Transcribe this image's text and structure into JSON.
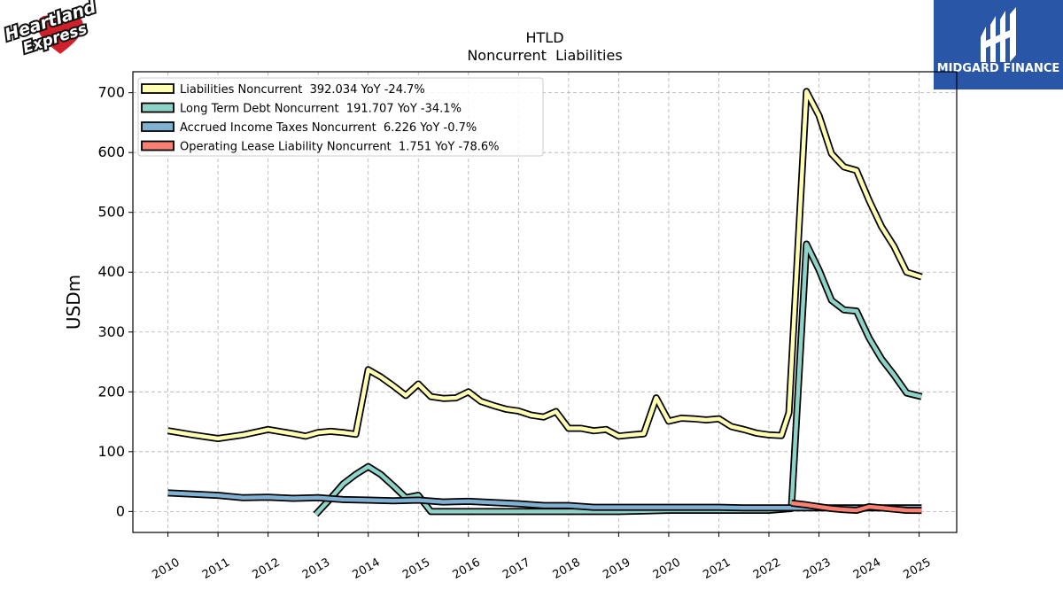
{
  "header": {
    "title": "HTLD",
    "subtitle": "Noncurrent  Liabilities"
  },
  "logo": {
    "company_lines": [
      "Heartland",
      "Express"
    ]
  },
  "brand": {
    "name": "MIDGARD FINANCE",
    "background": "#2a56a8"
  },
  "chart_data": {
    "type": "line",
    "title": "HTLD",
    "subtitle": "Noncurrent  Liabilities",
    "xlabel": "",
    "ylabel": "USDm",
    "xlim": [
      2009.3,
      2025.75
    ],
    "ylim": [
      -35,
      735
    ],
    "yticks": [
      0,
      100,
      200,
      300,
      400,
      500,
      600,
      700
    ],
    "xticks": [
      "2010",
      "2011",
      "2012",
      "2013",
      "2014",
      "2015",
      "2016",
      "2017",
      "2018",
      "2019",
      "2020",
      "2021",
      "2022",
      "2023",
      "2024",
      "2025"
    ],
    "grid": true,
    "legend_position": "top-left",
    "series": [
      {
        "name": "Liabilities Noncurrent",
        "legend": "Liabilities Noncurrent  392.034 YoY -24.7%",
        "color": "#ffffb3",
        "points": [
          [
            2010.0,
            135
          ],
          [
            2010.5,
            128
          ],
          [
            2011.0,
            122
          ],
          [
            2011.5,
            128
          ],
          [
            2012.0,
            137
          ],
          [
            2012.5,
            130
          ],
          [
            2012.75,
            126
          ],
          [
            2013.0,
            132
          ],
          [
            2013.25,
            134
          ],
          [
            2013.5,
            132
          ],
          [
            2013.75,
            129
          ],
          [
            2014.0,
            237
          ],
          [
            2014.25,
            225
          ],
          [
            2014.5,
            210
          ],
          [
            2014.75,
            194
          ],
          [
            2015.0,
            213
          ],
          [
            2015.25,
            192
          ],
          [
            2015.5,
            189
          ],
          [
            2015.75,
            190
          ],
          [
            2016.0,
            200
          ],
          [
            2016.25,
            184
          ],
          [
            2016.5,
            177
          ],
          [
            2016.75,
            171
          ],
          [
            2017.0,
            168
          ],
          [
            2017.25,
            161
          ],
          [
            2017.5,
            158
          ],
          [
            2017.75,
            167
          ],
          [
            2018.0,
            139
          ],
          [
            2018.25,
            139
          ],
          [
            2018.5,
            135
          ],
          [
            2018.75,
            137
          ],
          [
            2019.0,
            126
          ],
          [
            2019.25,
            128
          ],
          [
            2019.5,
            130
          ],
          [
            2019.75,
            190
          ],
          [
            2020.0,
            151
          ],
          [
            2020.25,
            156
          ],
          [
            2020.5,
            155
          ],
          [
            2020.75,
            153
          ],
          [
            2021.0,
            155
          ],
          [
            2021.25,
            142
          ],
          [
            2021.5,
            137
          ],
          [
            2021.75,
            131
          ],
          [
            2022.0,
            128
          ],
          [
            2022.25,
            127
          ],
          [
            2022.4,
            165
          ],
          [
            2022.75,
            702
          ],
          [
            2023.0,
            662
          ],
          [
            2023.25,
            598
          ],
          [
            2023.5,
            576
          ],
          [
            2023.75,
            570
          ],
          [
            2024.0,
            520
          ],
          [
            2024.25,
            476
          ],
          [
            2024.5,
            443
          ],
          [
            2024.75,
            400
          ],
          [
            2025.05,
            392
          ]
        ]
      },
      {
        "name": "Long Term Debt Noncurrent",
        "legend": "Long Term Debt Noncurrent  191.707 YoY -34.1%",
        "color": "#8dd3c7",
        "points": [
          [
            2012.95,
            -5
          ],
          [
            2013.25,
            22
          ],
          [
            2013.5,
            46
          ],
          [
            2013.75,
            62
          ],
          [
            2014.0,
            75
          ],
          [
            2014.25,
            62
          ],
          [
            2014.5,
            43
          ],
          [
            2014.75,
            23
          ],
          [
            2015.0,
            27
          ],
          [
            2015.25,
            0
          ],
          [
            2015.5,
            0
          ],
          [
            2016.0,
            0
          ],
          [
            2016.5,
            0
          ],
          [
            2017.0,
            0
          ],
          [
            2017.5,
            0
          ],
          [
            2018.0,
            0
          ],
          [
            2018.5,
            0
          ],
          [
            2019.0,
            0
          ],
          [
            2019.5,
            1
          ],
          [
            2020.0,
            2
          ],
          [
            2020.5,
            2
          ],
          [
            2021.0,
            2
          ],
          [
            2021.5,
            2
          ],
          [
            2022.0,
            2
          ],
          [
            2022.45,
            5
          ],
          [
            2022.75,
            447
          ],
          [
            2023.0,
            404
          ],
          [
            2023.25,
            353
          ],
          [
            2023.5,
            337
          ],
          [
            2023.75,
            335
          ],
          [
            2024.0,
            290
          ],
          [
            2024.25,
            255
          ],
          [
            2024.5,
            228
          ],
          [
            2024.75,
            198
          ],
          [
            2025.05,
            192
          ]
        ]
      },
      {
        "name": "Accrued Income Taxes Noncurrent",
        "legend": "Accrued Income Taxes Noncurrent  6.226 YoY -0.7%",
        "color": "#80b1d3",
        "points": [
          [
            2010.0,
            31
          ],
          [
            2010.5,
            29
          ],
          [
            2011.0,
            27
          ],
          [
            2011.5,
            23
          ],
          [
            2012.0,
            24
          ],
          [
            2012.5,
            22
          ],
          [
            2013.0,
            23
          ],
          [
            2013.5,
            20
          ],
          [
            2014.0,
            19
          ],
          [
            2014.5,
            18
          ],
          [
            2015.0,
            19
          ],
          [
            2015.5,
            16
          ],
          [
            2016.0,
            17
          ],
          [
            2016.5,
            15
          ],
          [
            2017.0,
            13
          ],
          [
            2017.5,
            10
          ],
          [
            2018.0,
            10
          ],
          [
            2018.5,
            7
          ],
          [
            2019.0,
            7
          ],
          [
            2019.5,
            7
          ],
          [
            2020.0,
            7
          ],
          [
            2020.5,
            7
          ],
          [
            2021.0,
            7
          ],
          [
            2021.5,
            6
          ],
          [
            2022.0,
            6
          ],
          [
            2022.5,
            6
          ],
          [
            2023.0,
            6
          ],
          [
            2023.5,
            6
          ],
          [
            2024.0,
            6
          ],
          [
            2024.5,
            6
          ],
          [
            2025.05,
            6.2
          ]
        ]
      },
      {
        "name": "Operating Lease Liability Noncurrent",
        "legend": "Operating Lease Liability Noncurrent  1.751 YoY -78.6%",
        "color": "#fb8072",
        "points": [
          [
            2022.45,
            14
          ],
          [
            2022.75,
            11
          ],
          [
            2023.0,
            8
          ],
          [
            2023.25,
            5
          ],
          [
            2023.5,
            3
          ],
          [
            2023.75,
            2
          ],
          [
            2024.0,
            8
          ],
          [
            2024.25,
            6
          ],
          [
            2024.5,
            4
          ],
          [
            2024.75,
            2
          ],
          [
            2025.05,
            1.8
          ]
        ]
      }
    ]
  }
}
